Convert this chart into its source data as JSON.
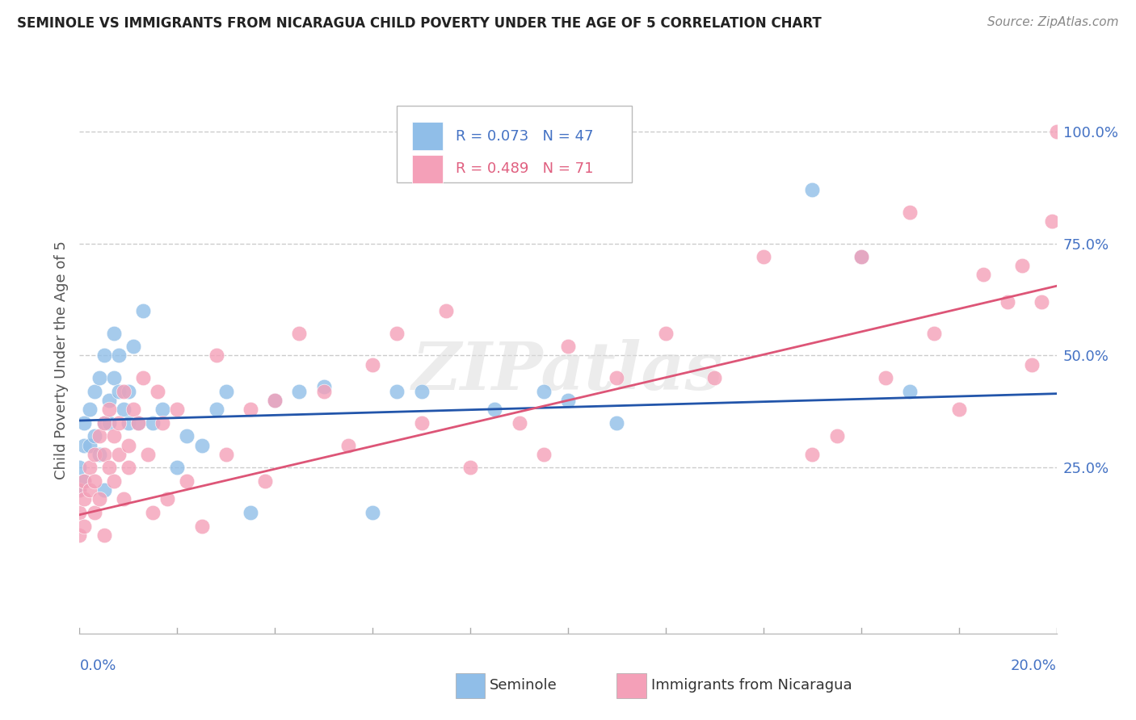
{
  "title": "SEMINOLE VS IMMIGRANTS FROM NICARAGUA CHILD POVERTY UNDER THE AGE OF 5 CORRELATION CHART",
  "source": "Source: ZipAtlas.com",
  "ylabel": "Child Poverty Under the Age of 5",
  "y_tick_labels": [
    "25.0%",
    "50.0%",
    "75.0%",
    "100.0%"
  ],
  "y_tick_values": [
    0.25,
    0.5,
    0.75,
    1.0
  ],
  "x_range": [
    0.0,
    0.2
  ],
  "y_range": [
    -0.12,
    1.1
  ],
  "legend_blue_label": "Seminole",
  "legend_pink_label": "Immigrants from Nicaragua",
  "R_blue": "0.073",
  "N_blue": "47",
  "R_pink": "0.489",
  "N_pink": "71",
  "color_blue": "#90BEE8",
  "color_pink": "#F4A0B8",
  "color_blue_line": "#2255AA",
  "color_pink_line": "#DD5577",
  "color_axis_text": "#4472C4",
  "background_color": "#FFFFFF",
  "grid_color": "#CCCCCC",
  "watermark_text": "ZIPatlas",
  "blue_line_x0": 0.0,
  "blue_line_y0": 0.355,
  "blue_line_x1": 0.2,
  "blue_line_y1": 0.415,
  "pink_line_x0": 0.0,
  "pink_line_y0": 0.145,
  "pink_line_x1": 0.2,
  "pink_line_y1": 0.655,
  "blue_x": [
    0.0,
    0.0,
    0.001,
    0.001,
    0.001,
    0.002,
    0.002,
    0.003,
    0.003,
    0.004,
    0.004,
    0.005,
    0.005,
    0.005,
    0.006,
    0.006,
    0.007,
    0.007,
    0.008,
    0.008,
    0.009,
    0.01,
    0.01,
    0.011,
    0.012,
    0.013,
    0.015,
    0.017,
    0.02,
    0.022,
    0.025,
    0.028,
    0.03,
    0.035,
    0.04,
    0.045,
    0.05,
    0.06,
    0.065,
    0.07,
    0.085,
    0.095,
    0.1,
    0.11,
    0.15,
    0.16,
    0.17
  ],
  "blue_y": [
    0.2,
    0.25,
    0.35,
    0.3,
    0.22,
    0.38,
    0.3,
    0.32,
    0.42,
    0.28,
    0.45,
    0.35,
    0.5,
    0.2,
    0.4,
    0.35,
    0.55,
    0.45,
    0.42,
    0.5,
    0.38,
    0.35,
    0.42,
    0.52,
    0.35,
    0.6,
    0.35,
    0.38,
    0.25,
    0.32,
    0.3,
    0.38,
    0.42,
    0.15,
    0.4,
    0.42,
    0.43,
    0.15,
    0.42,
    0.42,
    0.38,
    0.42,
    0.4,
    0.35,
    0.87,
    0.72,
    0.42
  ],
  "pink_x": [
    0.0,
    0.0,
    0.0,
    0.001,
    0.001,
    0.001,
    0.002,
    0.002,
    0.003,
    0.003,
    0.003,
    0.004,
    0.004,
    0.005,
    0.005,
    0.005,
    0.006,
    0.006,
    0.007,
    0.007,
    0.008,
    0.008,
    0.009,
    0.009,
    0.01,
    0.01,
    0.011,
    0.012,
    0.013,
    0.014,
    0.015,
    0.016,
    0.017,
    0.018,
    0.02,
    0.022,
    0.025,
    0.028,
    0.03,
    0.035,
    0.038,
    0.04,
    0.045,
    0.05,
    0.055,
    0.06,
    0.065,
    0.07,
    0.075,
    0.08,
    0.09,
    0.095,
    0.1,
    0.11,
    0.12,
    0.13,
    0.14,
    0.15,
    0.155,
    0.16,
    0.165,
    0.17,
    0.175,
    0.18,
    0.185,
    0.19,
    0.193,
    0.195,
    0.197,
    0.199,
    0.2
  ],
  "pink_y": [
    0.2,
    0.15,
    0.1,
    0.18,
    0.22,
    0.12,
    0.25,
    0.2,
    0.28,
    0.15,
    0.22,
    0.32,
    0.18,
    0.35,
    0.28,
    0.1,
    0.25,
    0.38,
    0.22,
    0.32,
    0.28,
    0.35,
    0.18,
    0.42,
    0.25,
    0.3,
    0.38,
    0.35,
    0.45,
    0.28,
    0.15,
    0.42,
    0.35,
    0.18,
    0.38,
    0.22,
    0.12,
    0.5,
    0.28,
    0.38,
    0.22,
    0.4,
    0.55,
    0.42,
    0.3,
    0.48,
    0.55,
    0.35,
    0.6,
    0.25,
    0.35,
    0.28,
    0.52,
    0.45,
    0.55,
    0.45,
    0.72,
    0.28,
    0.32,
    0.72,
    0.45,
    0.82,
    0.55,
    0.38,
    0.68,
    0.62,
    0.7,
    0.48,
    0.62,
    0.8,
    1.0
  ]
}
